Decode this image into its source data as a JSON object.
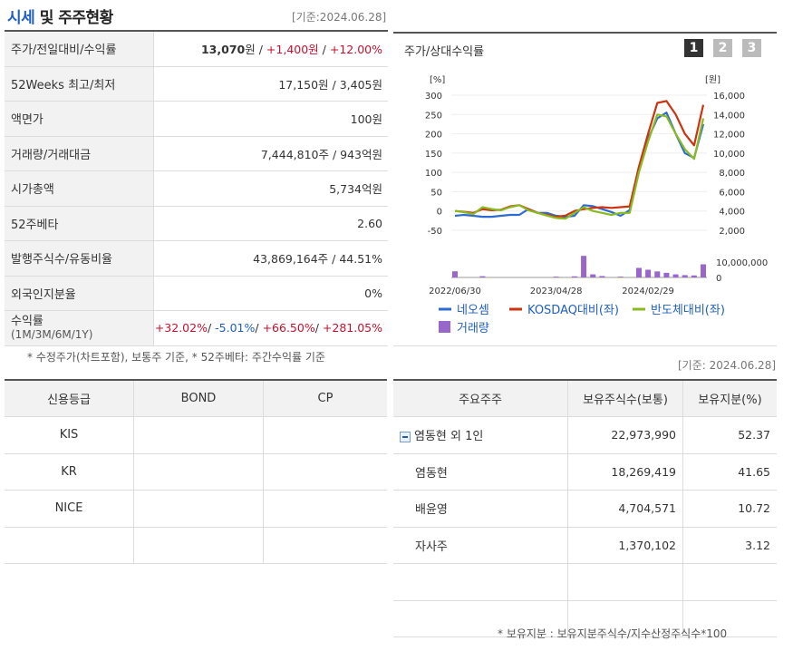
{
  "header": {
    "title_blue": "시세",
    "title_rest": " 및 주주현황",
    "date": "[기준:2024.06.28]"
  },
  "info_rows": [
    {
      "label": "주가/전일대비/수익률",
      "value_main": "13,070",
      "value_unit": "원",
      "value_sep": " / ",
      "value_change": "+1,400원",
      "value_sep2": " / ",
      "value_pct": "+12.00%"
    },
    {
      "label": "52Weeks 최고/최저",
      "value": "17,150원 / 3,405원"
    },
    {
      "label": "액면가",
      "value": "100원"
    },
    {
      "label": "거래량/거래대금",
      "value": "7,444,810주 / 943억원"
    },
    {
      "label": "시가총액",
      "value": "5,734억원"
    },
    {
      "label": "52주베타",
      "value": "2.60"
    },
    {
      "label": "발행주식수/유동비율",
      "value": "43,869,164주 / 44.51%"
    },
    {
      "label": "외국인지분율",
      "value": "0%"
    }
  ],
  "returns": {
    "label": "수익률",
    "sublabel": "(1M/3M/6M/1Y)",
    "v1": "+32.02%",
    "v2": "-5.01%",
    "v3": "+66.50%",
    "v4": "+281.05%",
    "sep": "/ "
  },
  "note1": "* 수정주가(차트포함), 보통주 기준, * 52주베타: 주간수익률 기준",
  "chart": {
    "title": "주가/상대수익률",
    "buttons": [
      "1",
      "2",
      "3"
    ],
    "colors": {
      "neosem": "#2e6bd0",
      "kosdaq": "#cc3311",
      "semi": "#88bb22",
      "volume": "#9966cc",
      "active_btn": "#333333",
      "inactive_btn": "#bbbbbb"
    },
    "legend": [
      "네오셈",
      "KOSDAQ대비(좌)",
      "반도체대비(좌)",
      "거래량"
    ]
  },
  "chart_data": {
    "type": "line",
    "left_axis": {
      "unit": "[%]",
      "ticks": [
        300,
        250,
        200,
        150,
        100,
        50,
        0,
        -50
      ],
      "range": [
        -50,
        300
      ]
    },
    "right_axis": {
      "unit": "[원]",
      "ticks": [
        "16,000",
        "14,000",
        "12,000",
        "10,000",
        "8,000",
        "6,000",
        "4,000",
        "2,000"
      ],
      "range": [
        2000,
        16000
      ]
    },
    "volume_axis": {
      "ticks": [
        "10,000,000",
        "0"
      ],
      "range": [
        0,
        20000000
      ]
    },
    "x_labels": [
      "2022/06/30",
      "2023/04/28",
      "2024/02/29"
    ],
    "x": [
      0,
      1,
      2,
      3,
      4,
      5,
      6,
      7,
      8,
      9,
      10,
      11,
      12,
      13,
      14,
      15,
      16,
      17,
      18,
      19,
      20,
      21,
      22,
      23,
      24,
      25,
      26,
      27
    ],
    "series": [
      {
        "name": "네오셈",
        "axis": "right",
        "values": [
          3500,
          3600,
          3500,
          3400,
          3400,
          3500,
          3600,
          3600,
          4200,
          3800,
          3800,
          3500,
          3400,
          3500,
          4600,
          4500,
          4200,
          3900,
          3500,
          4100,
          8500,
          11500,
          13600,
          14200,
          12000,
          10000,
          9500,
          13000
        ]
      },
      {
        "name": "KOSDAQ대비(좌)",
        "axis": "left",
        "values": [
          0,
          -2,
          -5,
          5,
          2,
          3,
          12,
          15,
          5,
          -5,
          -10,
          -15,
          -12,
          0,
          5,
          8,
          10,
          8,
          10,
          12,
          115,
          200,
          280,
          285,
          250,
          200,
          170,
          275
        ]
      },
      {
        "name": "반도체대비(좌)",
        "axis": "left",
        "values": [
          0,
          -3,
          -8,
          10,
          5,
          2,
          10,
          15,
          2,
          -5,
          -12,
          -18,
          -20,
          -5,
          10,
          0,
          -5,
          -10,
          -5,
          -5,
          100,
          180,
          250,
          245,
          200,
          160,
          135,
          240
        ]
      },
      {
        "name": "거래량",
        "axis": "volume",
        "type": "bar",
        "values": [
          4000000,
          0,
          0,
          800000,
          0,
          0,
          0,
          0,
          0,
          0,
          0,
          500000,
          0,
          700000,
          14000000,
          2000000,
          900000,
          0,
          500000,
          0,
          6200000,
          5000000,
          3900000,
          3000000,
          2000000,
          1500000,
          1300000,
          8500000
        ]
      }
    ]
  },
  "date2": "[기준: 2024.06.28]",
  "credit": {
    "headers": [
      "신용등급",
      "BOND",
      "CP"
    ],
    "rows": [
      [
        "KIS",
        "",
        ""
      ],
      [
        "KR",
        "",
        ""
      ],
      [
        "NICE",
        "",
        ""
      ],
      [
        "",
        "",
        ""
      ]
    ]
  },
  "holders": {
    "headers": [
      "주요주주",
      "보유주식수(보통)",
      "보유지분(%)"
    ],
    "rows": [
      {
        "name": "염동현 외 1인",
        "shares": "22,973,990",
        "pct": "52.37",
        "group": true
      },
      {
        "name": "염동현",
        "shares": "18,269,419",
        "pct": "41.65",
        "group": false
      },
      {
        "name": "배윤영",
        "shares": "4,704,571",
        "pct": "10.72",
        "group": false
      },
      {
        "name": "자사주",
        "shares": "1,370,102",
        "pct": "3.12",
        "group": false
      },
      {
        "name": "",
        "shares": "",
        "pct": "",
        "group": false
      },
      {
        "name": "",
        "shares": "",
        "pct": "",
        "group": false
      }
    ]
  },
  "note2": "* 보유지분 : 보유지분주식수/지수산정주식수*100"
}
